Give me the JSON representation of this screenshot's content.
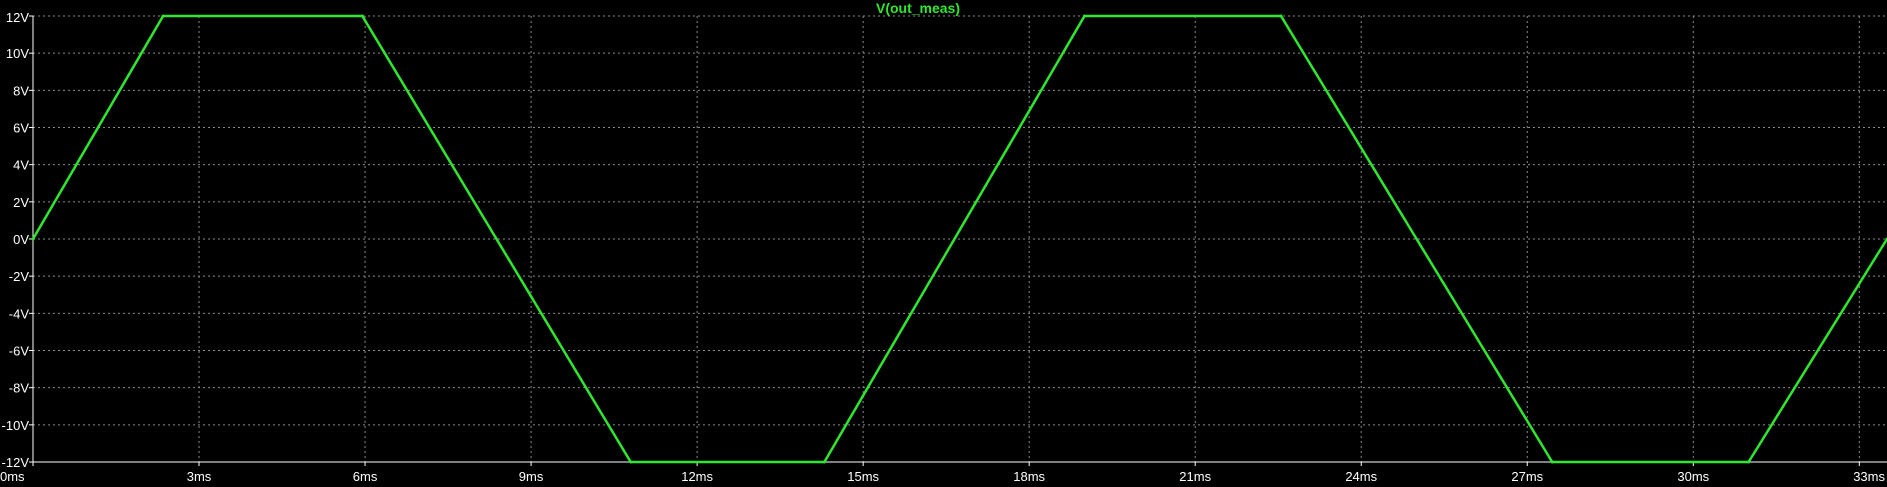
{
  "chart_data": {
    "type": "line",
    "title": "V(out_meas)",
    "xlabel": "",
    "ylabel": "",
    "x_unit": "ms",
    "y_unit": "V",
    "xlim": [
      0,
      33.5
    ],
    "ylim": [
      -12,
      12
    ],
    "grid": true,
    "x_ticks": [
      0,
      3,
      6,
      9,
      12,
      15,
      18,
      21,
      24,
      27,
      30,
      33
    ],
    "x_tick_labels": [
      "0ms",
      "3ms",
      "6ms",
      "9ms",
      "12ms",
      "15ms",
      "18ms",
      "21ms",
      "24ms",
      "27ms",
      "30ms",
      "33ms"
    ],
    "y_ticks": [
      12,
      10,
      8,
      6,
      4,
      2,
      0,
      -2,
      -4,
      -6,
      -8,
      -10,
      -12
    ],
    "y_tick_labels": [
      "12V",
      "10V",
      "8V",
      "6V",
      "4V",
      "2V",
      "0V",
      "-2V",
      "-4V",
      "-6V",
      "-8V",
      "-10V",
      "-12V"
    ],
    "series": [
      {
        "name": "V(out_meas)",
        "color": "#2ee82e",
        "x": [
          0,
          2.35,
          5.95,
          10.8,
          14.3,
          19.0,
          22.55,
          27.45,
          31.0,
          33.5
        ],
        "y": [
          0,
          12,
          12,
          -12,
          -12,
          12,
          12,
          -12,
          -12,
          0
        ]
      }
    ]
  },
  "colors": {
    "background": "#000000",
    "axis": "#ffffff",
    "grid": "#8a8a8a",
    "trace": "#2ee82e",
    "label_text": "#ffffff"
  }
}
